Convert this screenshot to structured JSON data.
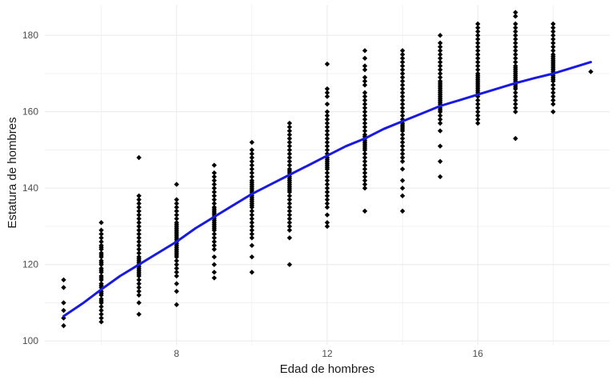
{
  "chart_data": {
    "type": "scatter",
    "title": "",
    "xlabel": "Edad de hombres",
    "ylabel": "Estatura de hombres",
    "xlim": [
      4.5,
      19.5
    ],
    "ylim": [
      99,
      188
    ],
    "x_ticks": [
      8,
      12,
      16
    ],
    "x_tick_labels": [
      "8",
      "12",
      "16"
    ],
    "y_ticks": [
      100,
      120,
      140,
      160,
      180
    ],
    "y_tick_labels": [
      "100",
      "120",
      "140",
      "160",
      "180"
    ],
    "grid": true,
    "legend": "none",
    "colors": {
      "points": "#000000",
      "trend": "#1919e6",
      "grid": "#ebebeb"
    },
    "series": [
      {
        "kind": "points",
        "x": [
          5,
          5,
          5,
          5,
          5,
          5,
          6,
          6,
          6,
          6,
          6,
          6,
          6,
          6,
          6,
          6,
          6,
          6,
          6,
          6,
          6,
          6,
          6,
          6,
          6,
          6,
          6,
          6,
          6,
          6,
          6,
          6,
          6,
          6,
          6,
          6,
          6,
          6,
          6,
          6,
          7,
          7,
          7,
          7,
          7,
          7,
          7,
          7,
          7,
          7,
          7,
          7,
          7,
          7,
          7,
          7,
          7,
          7,
          7,
          7,
          7,
          7,
          7,
          7,
          7,
          7,
          7,
          7,
          7,
          7,
          7,
          7,
          7,
          7,
          7,
          8,
          8,
          8,
          8,
          8,
          8,
          8,
          8,
          8,
          8,
          8,
          8,
          8,
          8,
          8,
          8,
          8,
          8,
          8,
          8,
          8,
          8,
          8,
          8,
          8,
          8,
          8,
          8,
          8,
          8,
          8,
          8,
          8,
          8,
          9,
          9,
          9,
          9,
          9,
          9,
          9,
          9,
          9,
          9,
          9,
          9,
          9,
          9,
          9,
          9,
          9,
          9,
          9,
          9,
          9,
          9,
          9,
          9,
          9,
          9,
          9,
          9,
          9,
          9,
          9,
          9,
          10,
          10,
          10,
          10,
          10,
          10,
          10,
          10,
          10,
          10,
          10,
          10,
          10,
          10,
          10,
          10,
          10,
          10,
          10,
          10,
          10,
          10,
          10,
          10,
          10,
          10,
          10,
          10,
          10,
          10,
          10,
          10,
          10,
          10,
          10,
          11,
          11,
          11,
          11,
          11,
          11,
          11,
          11,
          11,
          11,
          11,
          11,
          11,
          11,
          11,
          11,
          11,
          11,
          11,
          11,
          11,
          11,
          11,
          11,
          11,
          11,
          11,
          11,
          11,
          11,
          11,
          11,
          11,
          11,
          11,
          11,
          11,
          12,
          12,
          12,
          12,
          12,
          12,
          12,
          12,
          12,
          12,
          12,
          12,
          12,
          12,
          12,
          12,
          12,
          12,
          12,
          12,
          12,
          12,
          12,
          12,
          12,
          12,
          12,
          12,
          12,
          12,
          12,
          12,
          12,
          12,
          12,
          12,
          12,
          13,
          13,
          13,
          13,
          13,
          13,
          13,
          13,
          13,
          13,
          13,
          13,
          13,
          13,
          13,
          13,
          13,
          13,
          13,
          13,
          13,
          13,
          13,
          13,
          13,
          13,
          13,
          13,
          13,
          13,
          13,
          13,
          13,
          13,
          13,
          13,
          13,
          13,
          14,
          14,
          14,
          14,
          14,
          14,
          14,
          14,
          14,
          14,
          14,
          14,
          14,
          14,
          14,
          14,
          14,
          14,
          14,
          14,
          14,
          14,
          14,
          14,
          14,
          14,
          14,
          14,
          14,
          14,
          14,
          14,
          14,
          14,
          14,
          14,
          14,
          15,
          15,
          15,
          15,
          15,
          15,
          15,
          15,
          15,
          15,
          15,
          15,
          15,
          15,
          15,
          15,
          15,
          15,
          15,
          15,
          15,
          15,
          15,
          15,
          15,
          15,
          15,
          15,
          15,
          15,
          15,
          15,
          15,
          15,
          15,
          16,
          16,
          16,
          16,
          16,
          16,
          16,
          16,
          16,
          16,
          16,
          16,
          16,
          16,
          16,
          16,
          16,
          16,
          16,
          16,
          16,
          16,
          16,
          16,
          16,
          16,
          16,
          16,
          16,
          16,
          16,
          16,
          16,
          17,
          17,
          17,
          17,
          17,
          17,
          17,
          17,
          17,
          17,
          17,
          17,
          17,
          17,
          17,
          17,
          17,
          17,
          17,
          17,
          17,
          17,
          17,
          17,
          17,
          17,
          17,
          17,
          17,
          17,
          17,
          17,
          17,
          18,
          18,
          18,
          18,
          18,
          18,
          18,
          18,
          18,
          18,
          18,
          18,
          18,
          18,
          18,
          18,
          18,
          18,
          18,
          18,
          18,
          18,
          18,
          18,
          18,
          18,
          18,
          18,
          18,
          18,
          19
        ],
        "y": [
          104,
          106,
          108,
          110,
          114,
          116,
          105,
          106,
          107,
          108,
          109,
          110,
          111,
          112,
          113,
          114,
          115,
          116,
          117,
          118,
          119,
          120,
          121,
          122,
          123,
          124,
          125,
          126,
          127,
          128,
          129,
          131,
          110.5,
          112.5,
          114.5,
          116.5,
          118.5,
          120.5,
          122.5,
          124.5,
          107,
          110,
          112,
          113,
          114,
          115,
          116,
          117,
          118,
          119,
          120,
          121,
          122,
          123,
          124,
          125,
          126,
          127,
          128,
          129,
          130,
          131,
          132,
          133,
          134,
          135,
          136,
          137,
          138,
          148,
          117.5,
          118.5,
          119.5,
          120.5,
          121.5,
          109.5,
          113,
          115,
          117,
          118,
          119,
          120,
          121,
          122,
          123,
          124,
          125,
          126,
          127,
          128,
          129,
          130,
          131,
          132,
          133,
          134,
          135,
          136,
          137,
          141,
          122.5,
          123.5,
          124.5,
          125.5,
          126.5,
          127.5,
          128.5,
          129.5,
          130.5,
          116.5,
          118,
          120,
          122,
          124,
          125,
          126,
          127,
          128,
          129,
          130,
          131,
          132,
          133,
          134,
          135,
          136,
          137,
          138,
          139,
          140,
          141,
          142,
          143,
          144,
          146,
          129.5,
          130.5,
          131.5,
          132.5,
          133.5,
          134.5,
          118,
          122,
          125,
          127,
          128,
          129,
          130,
          131,
          132,
          133,
          134,
          135,
          136,
          137,
          138,
          139,
          140,
          141,
          142,
          143,
          144,
          145,
          146,
          147,
          148,
          149,
          150,
          152,
          135.5,
          136.5,
          137.5,
          138.5,
          139.5,
          140.5,
          141.5,
          120,
          127,
          129,
          130,
          131,
          132,
          133,
          134,
          135,
          136,
          137,
          138,
          139,
          140,
          141,
          142,
          143,
          144,
          145,
          146,
          147,
          148,
          149,
          150,
          151,
          152,
          153,
          154,
          155,
          156,
          157,
          139.5,
          140.5,
          141.5,
          142.5,
          143.5,
          144.5,
          130,
          131,
          133,
          135,
          136,
          137,
          138,
          139,
          140,
          141,
          142,
          143,
          144,
          145,
          146,
          147,
          148,
          149,
          150,
          151,
          152,
          153,
          154,
          155,
          156,
          157,
          158,
          159,
          160,
          162,
          164,
          165,
          166,
          172.5,
          145.5,
          146.5,
          147.5,
          134,
          140,
          141,
          142,
          143,
          144,
          145,
          146,
          147,
          148,
          149,
          150,
          151,
          152,
          153,
          154,
          155,
          156,
          157,
          158,
          159,
          160,
          161,
          162,
          163,
          164,
          165,
          167,
          168,
          169,
          171,
          172,
          174,
          176,
          150.5,
          151.5,
          152.5,
          153.5,
          134,
          138,
          140,
          142,
          145,
          147,
          148,
          149,
          150,
          151,
          152,
          153,
          154,
          155,
          156,
          157,
          158,
          159,
          160,
          161,
          162,
          163,
          164,
          165,
          166,
          167,
          168,
          169,
          170,
          171,
          172,
          173,
          174,
          175,
          176,
          155.5,
          156.5,
          143,
          147,
          151,
          155,
          157,
          158,
          159,
          160,
          161,
          162,
          163,
          164,
          165,
          166,
          167,
          168,
          169,
          170,
          171,
          172,
          173,
          174,
          175,
          176,
          177,
          178,
          180,
          160.5,
          161.5,
          162.5,
          163.5,
          164.5,
          165.5,
          166.5,
          167.5,
          157,
          158,
          159,
          160,
          161,
          162,
          163,
          164,
          165,
          166,
          167,
          168,
          169,
          170,
          171,
          172,
          173,
          174,
          175,
          176,
          177,
          178,
          179,
          180,
          181,
          182,
          183,
          164.5,
          165.5,
          166.5,
          167.5,
          168.5,
          169.5,
          153,
          160,
          161,
          162,
          163,
          164,
          165,
          166,
          167,
          168,
          169,
          170,
          171,
          172,
          173,
          174,
          175,
          176,
          177,
          178,
          179,
          180,
          181,
          182,
          183,
          185,
          186,
          166.5,
          167.5,
          168.5,
          169.5,
          170.5,
          171.5,
          160,
          162,
          163,
          164,
          165,
          166,
          167,
          168,
          169,
          170,
          171,
          172,
          173,
          174,
          175,
          176,
          177,
          178,
          179,
          180,
          181,
          182,
          183,
          168.5,
          169.5,
          170.5,
          171.5,
          172.5,
          173.5,
          174.5,
          170.5
        ]
      },
      {
        "kind": "trend",
        "x": [
          5,
          5.5,
          6,
          6.5,
          7,
          7.5,
          8,
          8.5,
          9,
          9.5,
          10,
          10.5,
          11,
          11.5,
          12,
          12.5,
          13,
          13.5,
          14,
          14.5,
          15,
          15.5,
          16,
          16.5,
          17,
          17.5,
          18,
          18.5,
          19
        ],
        "y": [
          106.5,
          109.8,
          113.5,
          117,
          120,
          123,
          126,
          129.5,
          132.5,
          135.5,
          138.5,
          141,
          143.5,
          146,
          148.5,
          151,
          153,
          155.5,
          157.5,
          159.5,
          161.5,
          163,
          164.5,
          166,
          167.5,
          168.8,
          170,
          171.5,
          173
        ]
      }
    ]
  }
}
